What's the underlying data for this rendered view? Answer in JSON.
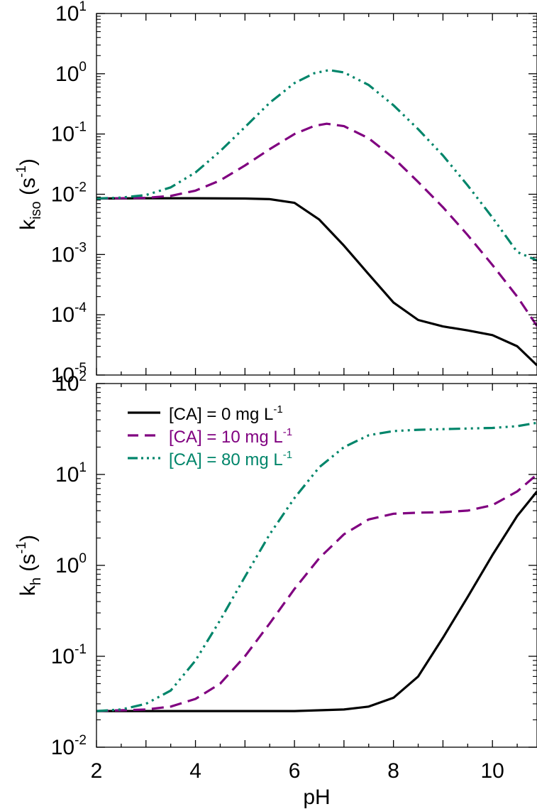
{
  "chart_data": [
    {
      "type": "line",
      "ylabel": {
        "main": "k",
        "sub": "iso",
        "unit_base": " (s",
        "unit_sup": "-1",
        "unit_close": ")"
      },
      "yscale": "log",
      "xlim": [
        2,
        10.9
      ],
      "ylim_exp": [
        -5,
        1
      ],
      "yticks_exp": [
        -5,
        -4,
        -3,
        -2,
        -1,
        0,
        1
      ],
      "xticks": [
        2,
        4,
        6,
        8,
        10
      ],
      "xticklabels_shown": false,
      "grid": false,
      "series": [
        {
          "name": "[CA] =  0 mg L-1",
          "color": "#000000",
          "style": "solid",
          "x": [
            2,
            3,
            4,
            5,
            5.5,
            6,
            6.5,
            7,
            7.5,
            8,
            8.5,
            9,
            9.5,
            10,
            10.5,
            10.9
          ],
          "y": [
            0.0085,
            0.0086,
            0.0086,
            0.0085,
            0.0083,
            0.0072,
            0.0038,
            0.0014,
            0.00047,
            0.00016,
            8.2e-05,
            6.4e-05,
            5.5e-05,
            4.6e-05,
            3e-05,
            1.45e-05
          ]
        },
        {
          "name": "[CA] = 10 mg L-1",
          "color": "#800080",
          "style": "dashed",
          "x": [
            2,
            3,
            3.5,
            4,
            4.5,
            5,
            5.5,
            6,
            6.4,
            6.65,
            7,
            7.5,
            8,
            8.5,
            9,
            9.5,
            10,
            10.5,
            10.9
          ],
          "y": [
            0.0085,
            0.0087,
            0.0094,
            0.0115,
            0.017,
            0.03,
            0.056,
            0.1,
            0.136,
            0.148,
            0.135,
            0.085,
            0.04,
            0.016,
            0.0061,
            0.0021,
            0.00067,
            0.0002,
            6.5e-05
          ]
        },
        {
          "name": "[CA] = 80 mg L-1",
          "color": "#00856a",
          "style": "dashdotdot",
          "x": [
            2,
            2.5,
            3,
            3.5,
            4,
            4.5,
            5,
            5.5,
            6,
            6.4,
            6.7,
            7,
            7.5,
            8,
            8.5,
            9,
            9.5,
            10,
            10.5,
            10.9
          ],
          "y": [
            0.0085,
            0.0088,
            0.0097,
            0.013,
            0.023,
            0.052,
            0.13,
            0.33,
            0.7,
            1.02,
            1.15,
            1.05,
            0.65,
            0.3,
            0.12,
            0.044,
            0.014,
            0.0041,
            0.0011,
            0.0008
          ]
        }
      ]
    },
    {
      "type": "line",
      "xlabel": "pH",
      "ylabel": {
        "main": "k",
        "sub": "h",
        "unit_base": " (s",
        "unit_sup": "-1",
        "unit_close": ")"
      },
      "yscale": "log",
      "xlim": [
        2,
        10.9
      ],
      "ylim_exp": [
        -2,
        2
      ],
      "yticks_exp": [
        -2,
        -1,
        0,
        1,
        2
      ],
      "xticks": [
        2,
        4,
        6,
        8,
        10
      ],
      "xticklabels": [
        "2",
        "4",
        "6",
        "8",
        "10"
      ],
      "grid": false,
      "legend_position": "top-left",
      "series": [
        {
          "name": "[CA] =  0 mg L-1",
          "color": "#000000",
          "style": "solid",
          "x": [
            2,
            3,
            4,
            5,
            6,
            7,
            7.5,
            8,
            8.5,
            9,
            9.5,
            10,
            10.5,
            10.9
          ],
          "y": [
            0.025,
            0.025,
            0.025,
            0.025,
            0.025,
            0.026,
            0.028,
            0.035,
            0.06,
            0.16,
            0.45,
            1.3,
            3.5,
            6.5
          ]
        },
        {
          "name": "[CA] = 10 mg L-1",
          "color": "#800080",
          "style": "dashed",
          "x": [
            2,
            3,
            3.5,
            4,
            4.5,
            5,
            5.5,
            6,
            6.5,
            7,
            7.5,
            8,
            8.5,
            9,
            9.5,
            10,
            10.5,
            10.9
          ],
          "y": [
            0.025,
            0.026,
            0.028,
            0.034,
            0.05,
            0.1,
            0.23,
            0.55,
            1.2,
            2.2,
            3.2,
            3.7,
            3.8,
            3.85,
            4.0,
            4.6,
            6.5,
            10
          ]
        },
        {
          "name": "[CA] = 80 mg L-1",
          "color": "#00856a",
          "style": "dashdotdot",
          "x": [
            2,
            2.5,
            3,
            3.5,
            4,
            4.5,
            5,
            5.5,
            6,
            6.5,
            7,
            7.5,
            8,
            8.5,
            9,
            9.5,
            10,
            10.5,
            10.9
          ],
          "y": [
            0.025,
            0.026,
            0.03,
            0.042,
            0.09,
            0.25,
            0.75,
            2.2,
            5.5,
            12,
            20,
            27,
            30,
            31,
            31.5,
            32,
            32.5,
            34,
            37
          ]
        }
      ],
      "legend": [
        {
          "label": "[CA] =  0 mg L",
          "sup": "-1",
          "color": "#000000",
          "style": "solid"
        },
        {
          "label": "[CA] = 10 mg L",
          "sup": "-1",
          "color": "#800080",
          "style": "dashed"
        },
        {
          "label": "[CA] = 80 mg L",
          "sup": "-1",
          "color": "#00856a",
          "style": "dashdotdot"
        }
      ]
    }
  ]
}
